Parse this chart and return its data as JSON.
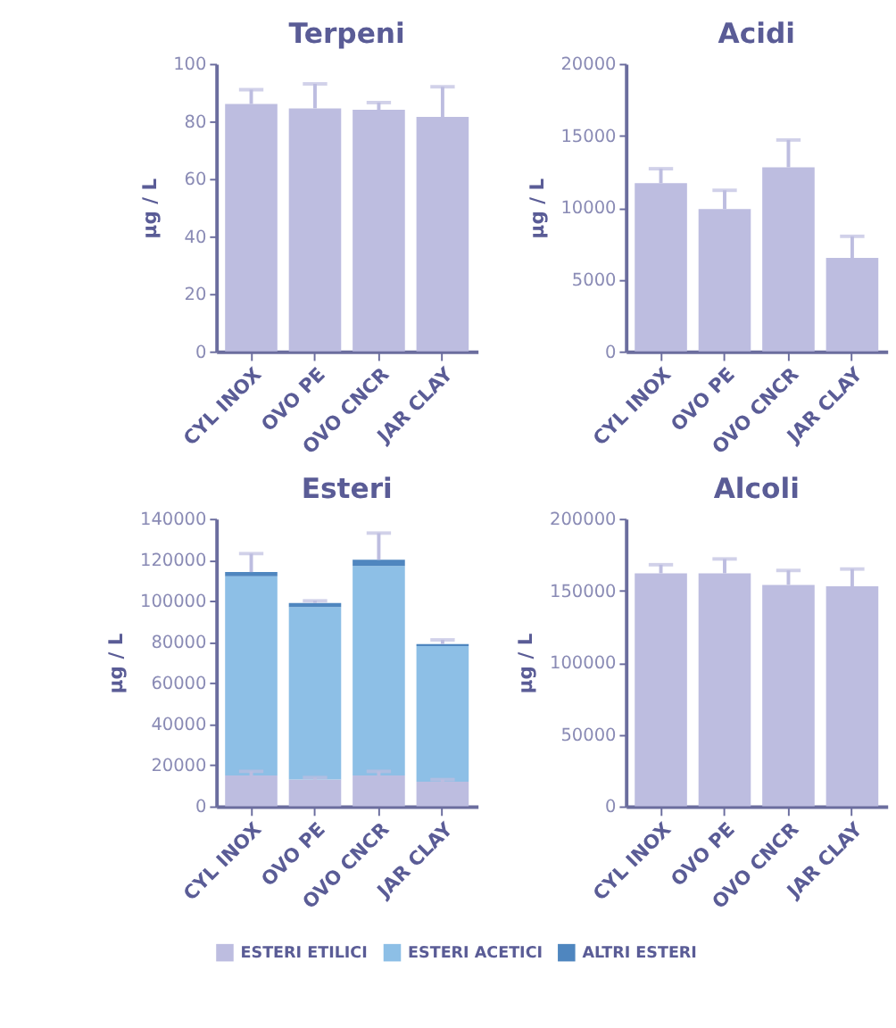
{
  "chart_data": [
    {
      "type": "bar",
      "title": "Terpeni",
      "ylabel": "µg / L",
      "categories": [
        "CYL INOX",
        "OVO PE",
        "OVO CNCR",
        "JAR CLAY"
      ],
      "color": "#bdbde0",
      "values": [
        86,
        84.5,
        84,
        81.5
      ],
      "errors": [
        [
          86,
          91
        ],
        [
          84.5,
          93
        ],
        [
          84,
          86.5
        ],
        [
          81.5,
          92
        ]
      ],
      "ylim": [
        0,
        100
      ],
      "yticks": [
        0,
        20,
        40,
        60,
        80,
        100
      ],
      "grid": false
    },
    {
      "type": "bar",
      "title": "Acidi",
      "ylabel": "µg / L",
      "categories": [
        "CYL INOX",
        "OVO PE",
        "OVO CNCR",
        "JAR CLAY"
      ],
      "color": "#bdbde0",
      "values": [
        11700,
        9900,
        12800,
        6500
      ],
      "errors": [
        [
          11700,
          12700
        ],
        [
          9900,
          11200
        ],
        [
          12800,
          14700
        ],
        [
          6500,
          8000
        ]
      ],
      "ylim": [
        0,
        20000
      ],
      "yticks": [
        0,
        5000,
        10000,
        15000,
        20000
      ],
      "grid": false
    },
    {
      "type": "bar",
      "title": "Esteri",
      "ylabel": "µg / L",
      "categories": [
        "CYL INOX",
        "OVO PE",
        "OVO CNCR",
        "JAR CLAY"
      ],
      "stacked": true,
      "legend": "bottom",
      "ylim": [
        0,
        140000
      ],
      "yticks": [
        0,
        20000,
        40000,
        60000,
        80000,
        100000,
        120000,
        140000
      ],
      "grid": false,
      "series": [
        {
          "name": "ESTERI ETILICI",
          "color": "#bdbde0",
          "values": [
            15000,
            13000,
            15000,
            12000
          ],
          "errors": [
            [
              15000,
              17000
            ],
            [
              13000,
              14000
            ],
            [
              15000,
              17000
            ],
            [
              12000,
              13000
            ]
          ]
        },
        {
          "name": "ESTERI ACETICI",
          "color": "#8dbfe6",
          "values": [
            97000,
            84000,
            102000,
            66000
          ]
        },
        {
          "name": "ALTRI ESTERI",
          "color": "#4f86bf",
          "values": [
            2000,
            2000,
            3000,
            1000
          ],
          "errors": [
            [
              114000,
              123000
            ],
            [
              99000,
              100000
            ],
            [
              120000,
              133000
            ],
            [
              79000,
              81000
            ]
          ]
        }
      ]
    },
    {
      "type": "bar",
      "title": "Alcoli",
      "ylabel": "µg / L",
      "categories": [
        "CYL INOX",
        "OVO PE",
        "OVO CNCR",
        "JAR CLAY"
      ],
      "color": "#bdbde0",
      "values": [
        162000,
        162000,
        154000,
        153000
      ],
      "errors": [
        [
          162000,
          168000
        ],
        [
          162000,
          172000
        ],
        [
          154000,
          164000
        ],
        [
          153000,
          165000
        ]
      ],
      "ylim": [
        0,
        200000
      ],
      "yticks": [
        0,
        50000,
        100000,
        150000,
        200000
      ],
      "grid": false
    }
  ]
}
